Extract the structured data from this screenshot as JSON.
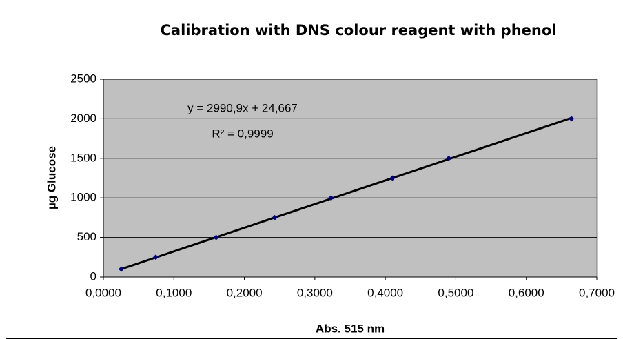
{
  "chart_data": {
    "type": "scatter",
    "title": "Calibration with DNS colour reagent with phenol",
    "x_label": "Abs. 515 nm",
    "y_label": "µg Glucose",
    "annotations": [
      "y = 2990,9x + 24,667",
      "R² = 0,9999"
    ],
    "trendline": {
      "slope": 2990.9,
      "intercept": 24.667,
      "color": "#000000"
    },
    "series": [
      {
        "name": "Glucose",
        "color": "#000080",
        "x": [
          0.0254,
          0.0743,
          0.16,
          0.243,
          0.323,
          0.41,
          0.49,
          0.664
        ],
        "values": [
          100,
          250,
          500,
          750,
          1000,
          1250,
          1500,
          2000
        ]
      }
    ],
    "xlim": [
      0,
      0.7
    ],
    "xticks": [
      {
        "value": 0,
        "label": "0,0000"
      },
      {
        "value": 0.1,
        "label": "0,1000"
      },
      {
        "value": 0.2,
        "label": "0,2000"
      },
      {
        "value": 0.3,
        "label": "0,3000"
      },
      {
        "value": 0.4,
        "label": "0,4000"
      },
      {
        "value": 0.5,
        "label": "0,5000"
      },
      {
        "value": 0.6,
        "label": "0,6000"
      },
      {
        "value": 0.7,
        "label": "0,7000"
      }
    ],
    "ylim": [
      0,
      2500
    ],
    "yticks": [
      0,
      500,
      1000,
      1500,
      2000,
      2500
    ],
    "grid": true,
    "plot_background": "#c0c0c0"
  }
}
